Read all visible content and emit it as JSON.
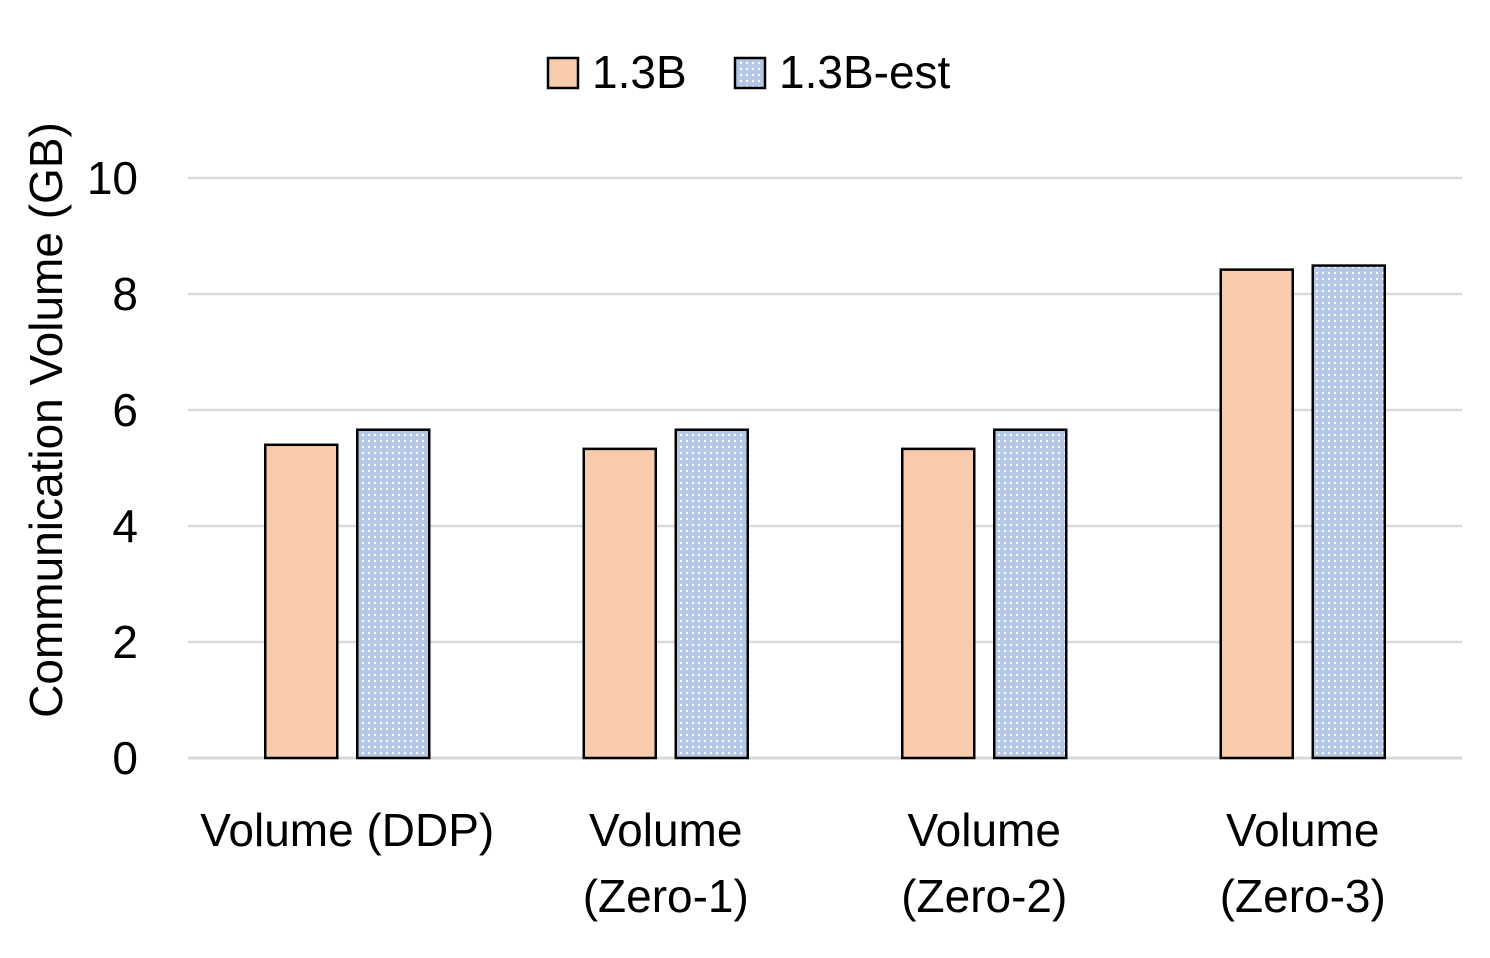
{
  "chart_data": {
    "type": "bar",
    "title": "",
    "xlabel": "",
    "ylabel": "Communication Volume (GB)",
    "ylim": [
      0,
      10
    ],
    "yticks": [
      0,
      2,
      4,
      6,
      8,
      10
    ],
    "grid": true,
    "legend_position": "top-center",
    "categories": [
      [
        "Volume (DDP)"
      ],
      [
        "Volume",
        "(Zero-1)"
      ],
      [
        "Volume",
        "(Zero-2)"
      ],
      [
        "Volume",
        "(Zero-3)"
      ]
    ],
    "series": [
      {
        "name": "1.3B",
        "values": [
          5.4,
          5.33,
          5.33,
          8.42
        ],
        "color": "#f8cbad",
        "pattern": "solid"
      },
      {
        "name": "1.3B-est",
        "values": [
          5.66,
          5.66,
          5.66,
          8.49
        ],
        "color": "#b4c7e7",
        "pattern": "dotted"
      }
    ]
  }
}
